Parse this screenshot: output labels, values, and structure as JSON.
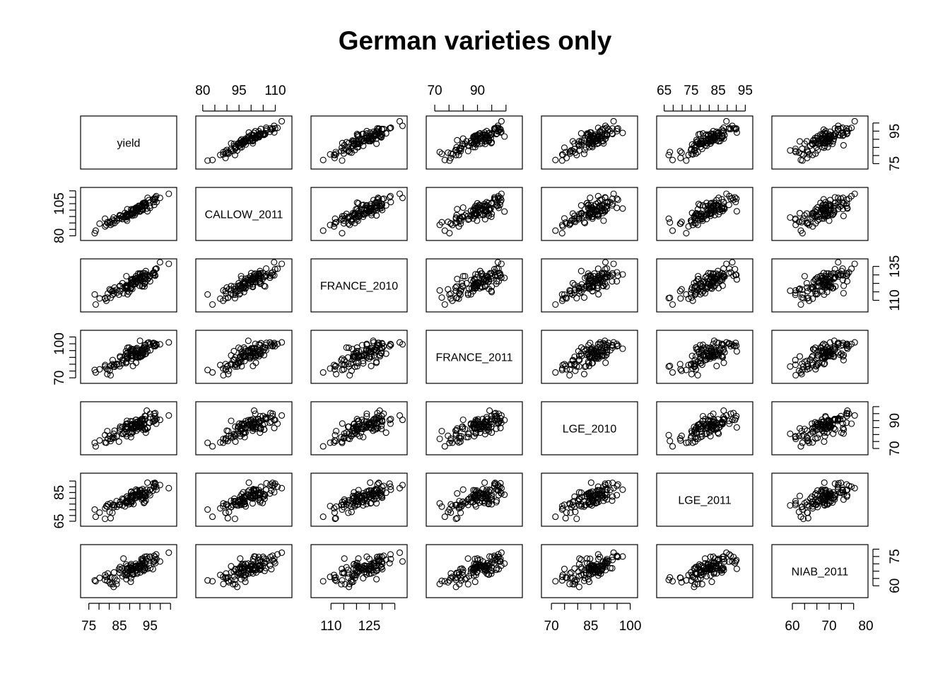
{
  "title": "German varieties only",
  "chart_data": {
    "type": "scatter",
    "subtype": "scatterplot-matrix",
    "title": "German varieties only",
    "variables": [
      {
        "name": "yield",
        "range": [
          73,
          103
        ],
        "ticks": [
          75,
          85,
          95
        ],
        "axis": "bottom",
        "ticks_right": [
          75,
          95
        ]
      },
      {
        "name": "CALLOW_2011",
        "range": [
          78,
          116
        ],
        "ticks_top": [
          80,
          95,
          110
        ],
        "ticks_left": [
          80,
          105
        ]
      },
      {
        "name": "FRANCE_2010",
        "range": [
          103,
          139
        ],
        "ticks_bottom": [
          110,
          125
        ],
        "ticks_right": [
          110,
          135
        ]
      },
      {
        "name": "FRANCE_2011",
        "range": [
          67,
          110
        ],
        "ticks_top": [
          70,
          90
        ],
        "ticks_left": [
          70,
          100
        ]
      },
      {
        "name": "LGE_2010",
        "range": [
          67,
          102
        ],
        "ticks_bottom": [
          70,
          85,
          100
        ],
        "ticks_right": [
          70,
          90
        ]
      },
      {
        "name": "LGE_2011",
        "range": [
          63,
          97
        ],
        "ticks_top": [
          65,
          75,
          85,
          95
        ],
        "ticks_left": [
          65,
          85
        ]
      },
      {
        "name": "NIAB_2011",
        "range": [
          55,
          80
        ],
        "ticks_bottom": [
          60,
          70,
          80
        ],
        "ticks_right": [
          60,
          75
        ]
      }
    ],
    "n_points": 110,
    "correlation": "strong positive between yield and every trial; moderate positive among trials",
    "grid": false,
    "legend": "none"
  }
}
